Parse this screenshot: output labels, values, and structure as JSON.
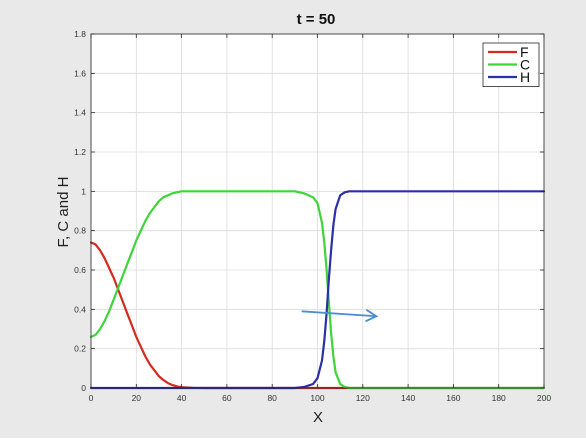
{
  "chart_data": {
    "type": "line",
    "title": "t = 50",
    "xlabel": "X",
    "ylabel": "F, C and H",
    "xlim": [
      0,
      200
    ],
    "ylim": [
      0,
      1.8
    ],
    "xticks": [
      0,
      20,
      40,
      60,
      80,
      100,
      120,
      140,
      160,
      180,
      200
    ],
    "yticks": [
      0,
      0.2,
      0.4,
      0.6,
      0.8,
      1,
      1.2,
      1.4,
      1.6,
      1.8
    ],
    "grid": true,
    "legend_position": "top-right",
    "x": [
      0,
      2,
      4,
      6,
      8,
      10,
      12,
      14,
      16,
      18,
      20,
      22,
      24,
      26,
      28,
      30,
      32,
      34,
      36,
      38,
      40,
      45,
      50,
      60,
      70,
      80,
      90,
      94,
      98,
      100,
      102,
      103,
      104,
      105,
      106,
      107,
      108,
      110,
      112,
      114,
      120,
      140,
      160,
      180,
      200
    ],
    "series": [
      {
        "name": "F",
        "color": "#d62a1e",
        "values": [
          0.74,
          0.73,
          0.7,
          0.66,
          0.61,
          0.56,
          0.5,
          0.44,
          0.38,
          0.32,
          0.26,
          0.21,
          0.16,
          0.12,
          0.09,
          0.06,
          0.04,
          0.025,
          0.015,
          0.008,
          0.004,
          0.001,
          0,
          0,
          0,
          0,
          0,
          0,
          0,
          0,
          0,
          0,
          0,
          0,
          0,
          0,
          0,
          0,
          0,
          0,
          0,
          0,
          0,
          0,
          0
        ]
      },
      {
        "name": "C",
        "color": "#3fd43a",
        "values": [
          0.26,
          0.27,
          0.3,
          0.34,
          0.39,
          0.45,
          0.51,
          0.57,
          0.63,
          0.69,
          0.75,
          0.8,
          0.85,
          0.89,
          0.92,
          0.95,
          0.97,
          0.98,
          0.99,
          0.995,
          1.0,
          1.0,
          1.0,
          1.0,
          1.0,
          1.0,
          1.0,
          0.99,
          0.97,
          0.94,
          0.84,
          0.74,
          0.6,
          0.44,
          0.28,
          0.16,
          0.08,
          0.02,
          0.005,
          0,
          0,
          0,
          0,
          0,
          0
        ]
      },
      {
        "name": "H",
        "color": "#2b2fa8",
        "values": [
          0,
          0,
          0,
          0,
          0,
          0,
          0,
          0,
          0,
          0,
          0,
          0,
          0,
          0,
          0,
          0,
          0,
          0,
          0,
          0,
          0,
          0,
          0,
          0,
          0,
          0,
          0,
          0.005,
          0.02,
          0.05,
          0.14,
          0.24,
          0.38,
          0.55,
          0.7,
          0.83,
          0.91,
          0.98,
          0.995,
          1.0,
          1.0,
          1.0,
          1.0,
          1.0,
          1.0
        ]
      }
    ],
    "annotations": [
      {
        "type": "arrow",
        "color": "#4a8fd4",
        "from": [
          93,
          0.39
        ],
        "to": [
          126,
          0.365
        ]
      }
    ]
  }
}
